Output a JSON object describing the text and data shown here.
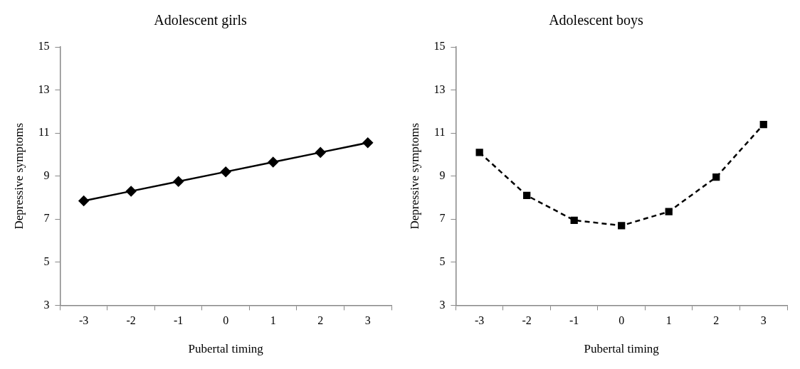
{
  "chart_data": [
    {
      "type": "line",
      "title": "Adolescent girls",
      "xlabel": "Pubertal timing",
      "ylabel": "Depressive symptoms",
      "categories": [
        "-3",
        "-2",
        "-1",
        "0",
        "1",
        "2",
        "3"
      ],
      "ylim": [
        3,
        15
      ],
      "yticks": [
        3,
        5,
        7,
        9,
        11,
        13,
        15
      ],
      "grid": false,
      "legend": false,
      "marker": "diamond",
      "line_style": "solid",
      "series": [
        {
          "color": "#000000",
          "values": [
            7.85,
            8.3,
            8.75,
            9.2,
            9.65,
            10.1,
            10.55
          ]
        }
      ]
    },
    {
      "type": "line",
      "title": "Adolescent boys",
      "xlabel": "Pubertal timing",
      "ylabel": "Depressive symptoms",
      "categories": [
        "-3",
        "-2",
        "-1",
        "0",
        "1",
        "2",
        "3"
      ],
      "ylim": [
        3,
        15
      ],
      "yticks": [
        3,
        5,
        7,
        9,
        11,
        13,
        15
      ],
      "grid": false,
      "legend": false,
      "marker": "square",
      "line_style": "dashed",
      "series": [
        {
          "color": "#000000",
          "values": [
            10.1,
            8.1,
            6.95,
            6.7,
            7.35,
            8.95,
            11.4
          ]
        }
      ]
    }
  ]
}
